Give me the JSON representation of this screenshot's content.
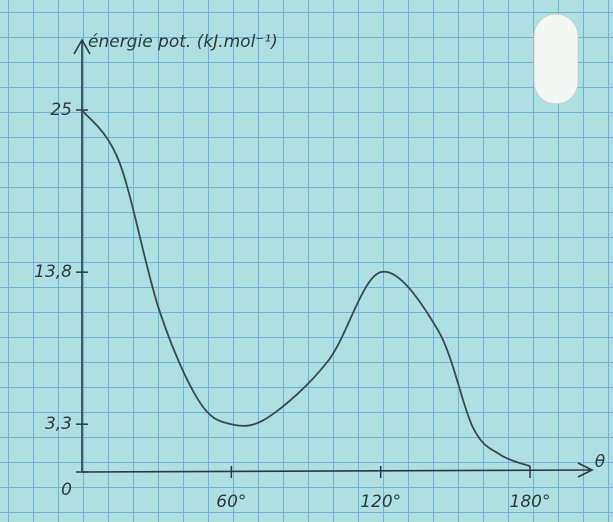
{
  "chart_data": {
    "type": "line",
    "y_label": "énergie pot. (kJ.mol⁻¹)",
    "x_label": "θ",
    "x": [
      0,
      15,
      31,
      47,
      60,
      75,
      99,
      120,
      143,
      157,
      168,
      180
    ],
    "series": [
      {
        "color": "#3a4a48",
        "values": [
          25,
          21.4,
          11.2,
          4.9,
          3.3,
          3.8,
          7.7,
          13.8,
          9.8,
          3.1,
          1.2,
          0.4
        ]
      }
    ],
    "xlim": [
      0,
      180
    ],
    "xticks": [
      {
        "value": 60,
        "label": "60°"
      },
      {
        "value": 120,
        "label": "120°"
      },
      {
        "value": 180,
        "label": "180°"
      }
    ],
    "ylim": [
      0,
      25
    ],
    "yticks": [
      0,
      {
        "value": 3.3,
        "label": "3,3"
      },
      {
        "value": 13.8,
        "label": "13,8"
      },
      25
    ]
  }
}
